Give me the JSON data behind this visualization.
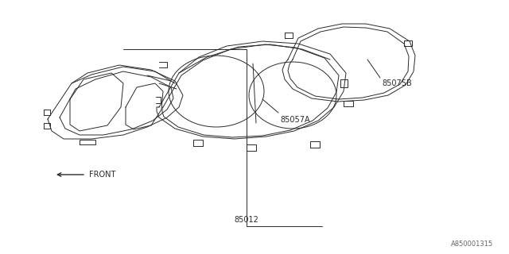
{
  "background_color": "#ffffff",
  "line_color": "#2a2a2a",
  "line_width": 0.7,
  "labels": {
    "part1": "85012",
    "part2": "85057A",
    "part3": "85075B",
    "front": "FRONT",
    "diagram_id": "A850001315"
  },
  "fontsize_label": 7,
  "fontsize_id": 6
}
